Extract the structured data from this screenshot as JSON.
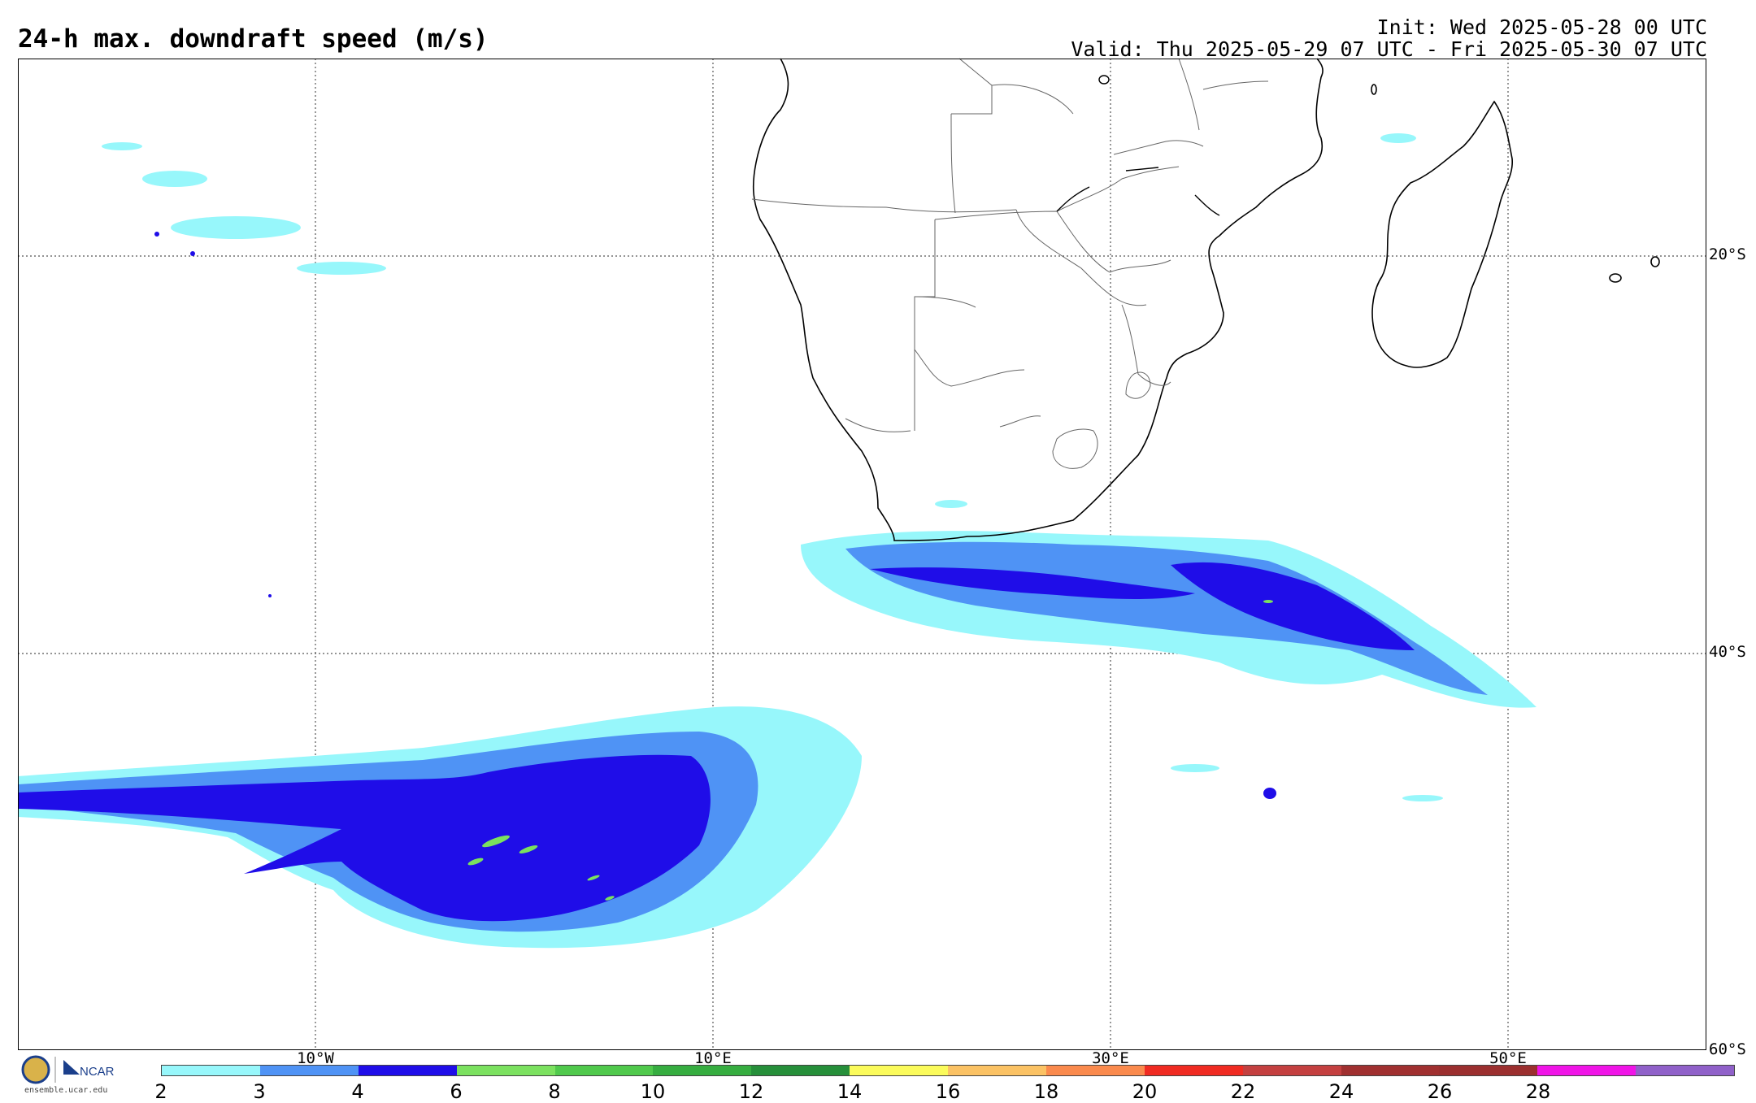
{
  "header": {
    "title": "24-h max. downdraft speed (m/s)",
    "init": "Init: Wed 2025-05-28 00 UTC",
    "valid": "Valid: Thu 2025-05-29 07 UTC - Fri 2025-05-30 07 UTC"
  },
  "grid": {
    "lat_labels": [
      "20°S",
      "40°S",
      "60°S"
    ],
    "lon_labels": [
      "10°W",
      "10°E",
      "30°E",
      "50°E"
    ]
  },
  "colorbar": {
    "colors": [
      "#97f7fb",
      "#4f93f5",
      "#1f0de8",
      "#7be15f",
      "#50c94c",
      "#36ad40",
      "#268f3a",
      "#fbfb5b",
      "#fbc264",
      "#fa8a4d",
      "#f02b22",
      "#c44040",
      "#a03030",
      "#9b2f2f",
      "#f014e7",
      "#9061c9"
    ],
    "ticks": [
      "2",
      "3",
      "4",
      "6",
      "8",
      "10",
      "12",
      "14",
      "16",
      "18",
      "20",
      "22",
      "24",
      "26",
      "28"
    ]
  },
  "logo": {
    "org": "NCAR",
    "site": "ensemble.ucar.edu"
  }
}
